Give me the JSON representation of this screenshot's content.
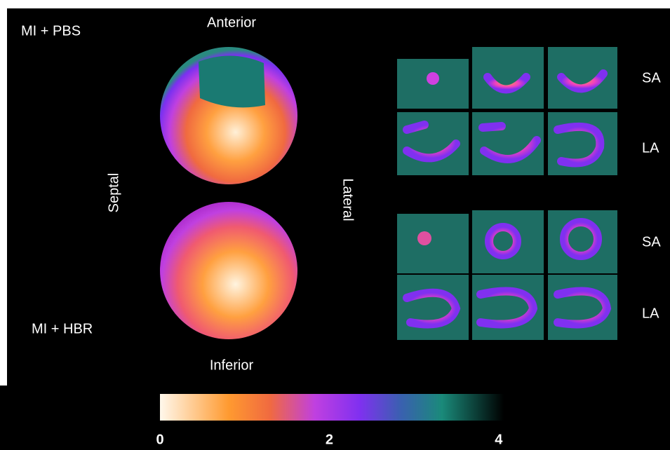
{
  "panel_labels": {
    "top_group": "MI + PBS",
    "bottom_group": "MI + HBR"
  },
  "orientation": {
    "anterior": "Anterior",
    "inferior": "Inferior",
    "septal": "Septal",
    "lateral": "Lateral"
  },
  "slice_labels": [
    "SA",
    "LA",
    "SA",
    "LA"
  ],
  "colorbar": {
    "lim": [
      0,
      4.06
    ],
    "ticks": [
      0,
      2,
      4
    ]
  }
}
